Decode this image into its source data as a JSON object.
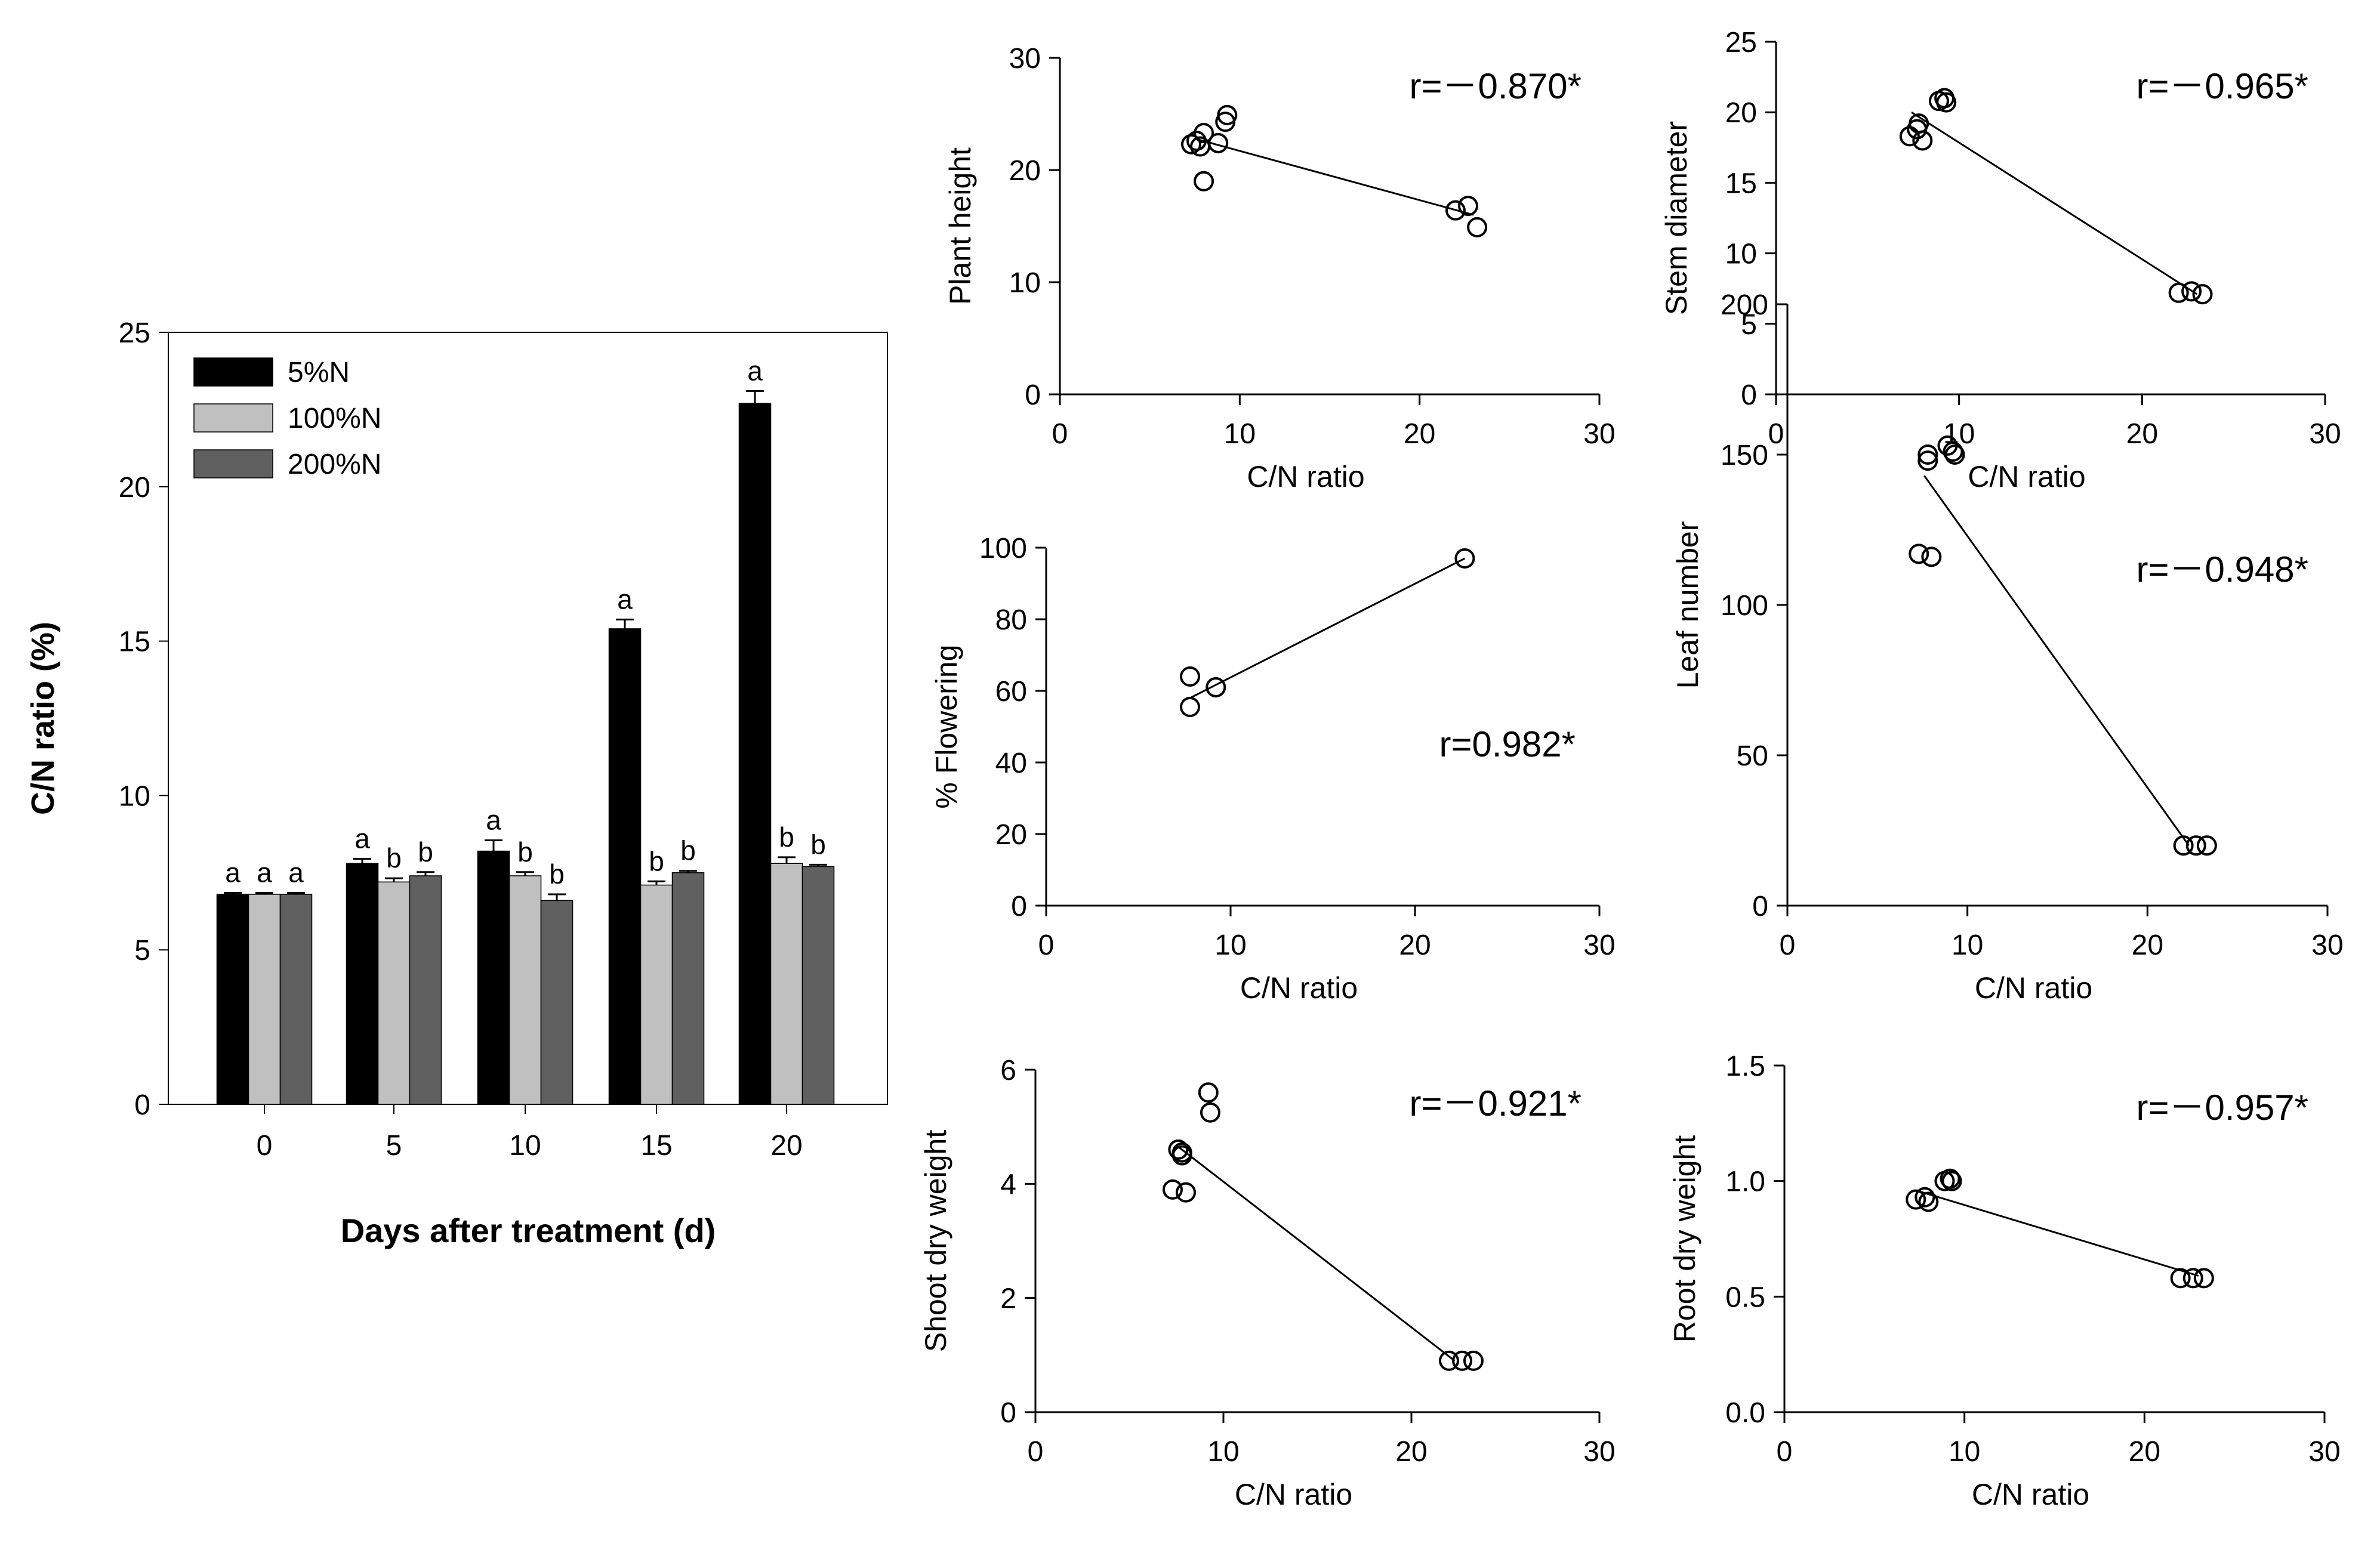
{
  "chart_data": [
    {
      "id": "bar",
      "type": "bar",
      "title": "",
      "xlabel": "Days after treatment (d)",
      "ylabel": "C/N ratio (%)",
      "ylim": [
        0,
        25
      ],
      "yticks": [
        "0",
        "5",
        "10",
        "15",
        "20",
        "25"
      ],
      "categories": [
        "0",
        "5",
        "10",
        "15",
        "20"
      ],
      "legend_position": "top-left",
      "series": [
        {
          "name": "5%N",
          "color": "#000000",
          "values": [
            6.8,
            7.8,
            8.2,
            15.4,
            22.7
          ],
          "errors": [
            0.05,
            0.15,
            0.35,
            0.3,
            0.4
          ],
          "letters": [
            "a",
            "a",
            "a",
            "a",
            "a"
          ]
        },
        {
          "name": "100%N",
          "color": "#c0c0c0",
          "values": [
            6.8,
            7.2,
            7.4,
            7.1,
            7.8
          ],
          "errors": [
            0.05,
            0.12,
            0.12,
            0.12,
            0.2
          ],
          "letters": [
            "a",
            "b",
            "b",
            "b",
            "b"
          ]
        },
        {
          "name": "200%N",
          "color": "#606060",
          "values": [
            6.8,
            7.4,
            6.6,
            7.5,
            7.7
          ],
          "errors": [
            0.05,
            0.12,
            0.2,
            0.06,
            0.06
          ],
          "letters": [
            "a",
            "b",
            "b",
            "b",
            "b"
          ]
        }
      ]
    },
    {
      "id": "s1",
      "type": "scatter",
      "ylabel": "Plant height",
      "xlabel": "C/N  ratio",
      "xlim": [
        0,
        30
      ],
      "ylim": [
        0,
        30
      ],
      "xticks": [
        "0",
        "10",
        "20",
        "30"
      ],
      "yticks": [
        "0",
        "10",
        "20",
        "30"
      ],
      "annotation": "r=－0.870*",
      "annotation_position": "top-right",
      "points": [
        [
          7.3,
          22.3
        ],
        [
          7.8,
          22.1
        ],
        [
          8.0,
          23.3
        ],
        [
          7.6,
          22.6
        ],
        [
          8.0,
          19.0
        ],
        [
          8.8,
          22.4
        ],
        [
          9.2,
          24.3
        ],
        [
          9.3,
          24.9
        ],
        [
          22.0,
          16.4
        ],
        [
          22.7,
          16.8
        ],
        [
          23.2,
          14.9
        ]
      ],
      "fit_line": [
        [
          7.5,
          22.8
        ],
        [
          23.0,
          16.0
        ]
      ]
    },
    {
      "id": "s2",
      "type": "scatter",
      "ylabel": "Stem diameter",
      "xlabel": "C/N  ratio",
      "xlim": [
        0,
        30
      ],
      "ylim": [
        0,
        25
      ],
      "xticks": [
        "0",
        "10",
        "20",
        "30"
      ],
      "yticks": [
        "0",
        "5",
        "10",
        "15",
        "20",
        "25"
      ],
      "annotation": "r=－0.965*",
      "annotation_position": "top-right",
      "points": [
        [
          7.3,
          18.3
        ],
        [
          7.7,
          18.8
        ],
        [
          7.8,
          19.2
        ],
        [
          8.0,
          18.0
        ],
        [
          8.9,
          20.8
        ],
        [
          9.2,
          21.0
        ],
        [
          9.3,
          20.7
        ],
        [
          22.0,
          7.2
        ],
        [
          22.7,
          7.3
        ],
        [
          23.3,
          7.1
        ]
      ],
      "fit_line": [
        [
          7.4,
          20.0
        ],
        [
          23.0,
          7.1
        ]
      ]
    },
    {
      "id": "s3",
      "type": "scatter",
      "ylabel": "% Flowering",
      "xlabel": "C/N  ratio",
      "xlim": [
        0,
        30
      ],
      "ylim": [
        0,
        100
      ],
      "xticks": [
        "0",
        "10",
        "20",
        "30"
      ],
      "yticks": [
        "0",
        "20",
        "40",
        "60",
        "80",
        "100"
      ],
      "annotation": "r=0.982*",
      "annotation_position": "middle-right",
      "points": [
        [
          7.8,
          64
        ],
        [
          7.8,
          55.5
        ],
        [
          9.2,
          61
        ],
        [
          22.7,
          97
        ]
      ],
      "fit_line": [
        [
          7.8,
          58
        ],
        [
          22.7,
          97
        ]
      ]
    },
    {
      "id": "s4",
      "type": "scatter",
      "ylabel": "Leaf number",
      "xlabel": "C/N  ratio",
      "xlim": [
        0,
        30
      ],
      "ylim": [
        0,
        200
      ],
      "xticks": [
        "0",
        "10",
        "20",
        "30"
      ],
      "yticks": [
        "0",
        "50",
        "100",
        "150",
        "200"
      ],
      "annotation": "r=－0.948*",
      "annotation_position": "top-right",
      "points": [
        [
          7.3,
          117
        ],
        [
          7.8,
          148
        ],
        [
          7.8,
          150
        ],
        [
          8.0,
          116
        ],
        [
          8.9,
          153
        ],
        [
          9.2,
          151
        ],
        [
          9.3,
          150
        ],
        [
          22.0,
          20
        ],
        [
          22.7,
          20
        ],
        [
          23.3,
          20
        ]
      ],
      "fit_line": [
        [
          7.6,
          143
        ],
        [
          22.3,
          20
        ]
      ]
    },
    {
      "id": "s5",
      "type": "scatter",
      "ylabel": "Shoot dry weight",
      "xlabel": "C/N  ratio",
      "xlim": [
        0,
        30
      ],
      "ylim": [
        0,
        6
      ],
      "xticks": [
        "0",
        "10",
        "20",
        "30"
      ],
      "yticks": [
        "0",
        "2",
        "4",
        "6"
      ],
      "annotation": "r=－0.921*",
      "annotation_position": "top-right",
      "points": [
        [
          7.3,
          3.9
        ],
        [
          7.6,
          4.6
        ],
        [
          7.8,
          4.55
        ],
        [
          7.8,
          4.5
        ],
        [
          8.0,
          3.85
        ],
        [
          9.2,
          5.6
        ],
        [
          9.3,
          5.25
        ],
        [
          22.0,
          0.9
        ],
        [
          22.7,
          0.9
        ],
        [
          23.3,
          0.9
        ]
      ],
      "fit_line": [
        [
          7.6,
          4.65
        ],
        [
          22.3,
          0.9
        ]
      ]
    },
    {
      "id": "s6",
      "type": "scatter",
      "ylabel": "Root dry weight",
      "xlabel": "C/N  ratio",
      "xlim": [
        0,
        30
      ],
      "ylim": [
        0,
        1.5
      ],
      "xticks": [
        "0",
        "10",
        "20",
        "30"
      ],
      "yticks": [
        "0.0",
        "0.5",
        "1.0",
        "1.5"
      ],
      "annotation": "r=－0.957*",
      "annotation_position": "top-right",
      "points": [
        [
          7.3,
          0.92
        ],
        [
          7.8,
          0.93
        ],
        [
          8.0,
          0.91
        ],
        [
          8.9,
          1.0
        ],
        [
          9.2,
          1.01
        ],
        [
          9.3,
          1.0
        ],
        [
          22.0,
          0.58
        ],
        [
          22.7,
          0.58
        ],
        [
          23.3,
          0.58
        ]
      ],
      "fit_line": [
        [
          7.3,
          0.96
        ],
        [
          23.0,
          0.59
        ]
      ]
    }
  ]
}
